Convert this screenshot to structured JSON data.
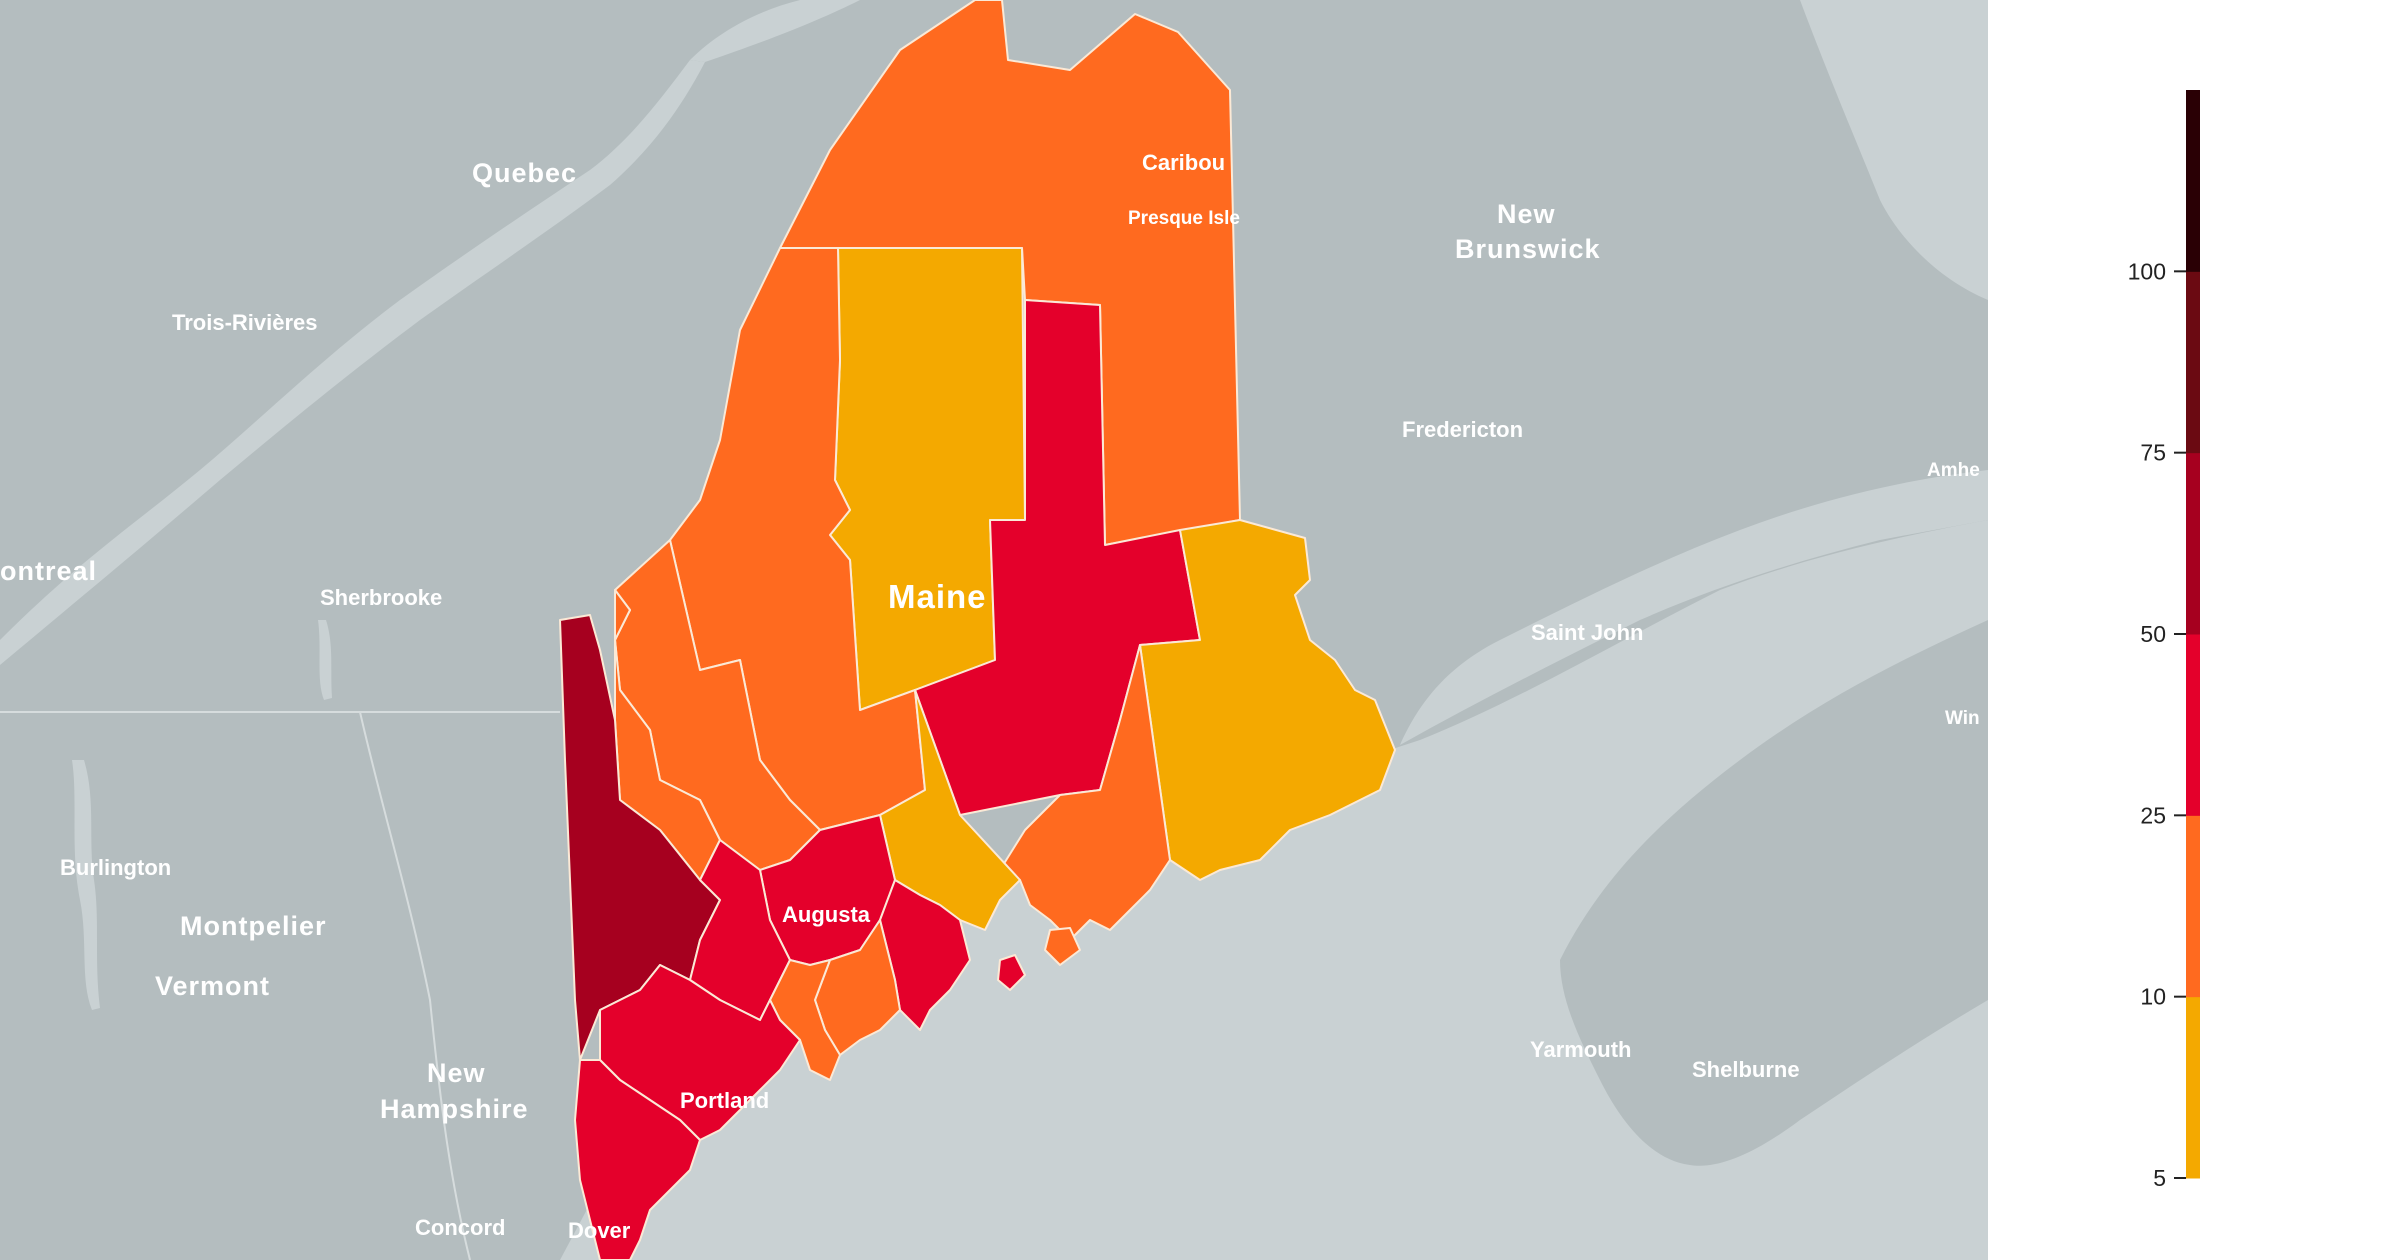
{
  "map": {
    "colors": {
      "land": "#b4bdbf",
      "water": "#c9d1d3",
      "border": "#d6dcdd",
      "bin_1": "#f4a900",
      "bin_2": "#ff6a1f",
      "bin_3": "#e4002b",
      "bin_4": "#a6001f",
      "bin_5": "#6b0a12",
      "bin_6": "#2a0005"
    },
    "labels": {
      "quebec": "Quebec",
      "trois_rivieres": "Trois-Rivières",
      "montreal": "ontreal",
      "sherbrooke": "Sherbrooke",
      "burlington": "Burlington",
      "montpelier": "Montpelier",
      "vermont": "Vermont",
      "nh_line1": "New",
      "nh_line2": "Hampshire",
      "concord": "Concord",
      "dover": "Dover",
      "portland": "Portland",
      "augusta": "Augusta",
      "maine": "Maine",
      "caribou": "Caribou",
      "presque_isle": "Presque Isle",
      "nb_line1": "New",
      "nb_line2": "Brunswick",
      "fredericton": "Fredericton",
      "saint_john": "Saint John",
      "amherst": "Amhe",
      "windsor": "Win",
      "yarmouth": "Yarmouth",
      "shelburne": "Shelburne"
    }
  },
  "legend": {
    "ticks": [
      "100",
      "75",
      "50",
      "25",
      "10",
      "5"
    ],
    "bin_colors": [
      "#f4a900",
      "#ff6a1f",
      "#e4002b",
      "#a6001f",
      "#6b0a12",
      "#2a0005"
    ]
  }
}
